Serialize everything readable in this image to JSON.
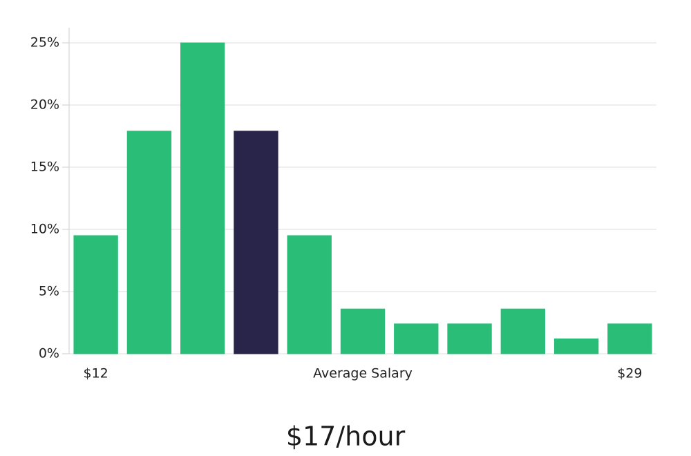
{
  "chart_data": {
    "type": "bar",
    "subtitle": "$17/hour",
    "categories": [
      "$12",
      null,
      null,
      null,
      null,
      "Average Salary",
      null,
      null,
      null,
      null,
      "$29"
    ],
    "values": [
      9.5,
      17.9,
      25,
      17.9,
      9.5,
      3.6,
      2.4,
      2.4,
      3.6,
      1.2,
      2.4
    ],
    "colors": [
      "#2abd77",
      "#2abd77",
      "#2abd77",
      "#28244a",
      "#2abd77",
      "#2abd77",
      "#2abd77",
      "#2abd77",
      "#2abd77",
      "#2abd77",
      "#2abd77"
    ],
    "ylim": [
      0,
      26
    ],
    "yticks": [
      {
        "value": 0,
        "label": "0%"
      },
      {
        "value": 5,
        "label": "5%"
      },
      {
        "value": 10,
        "label": "10%"
      },
      {
        "value": 15,
        "label": "15%"
      },
      {
        "value": 20,
        "label": "20%"
      },
      {
        "value": 25,
        "label": "25%"
      }
    ],
    "grid": true
  }
}
